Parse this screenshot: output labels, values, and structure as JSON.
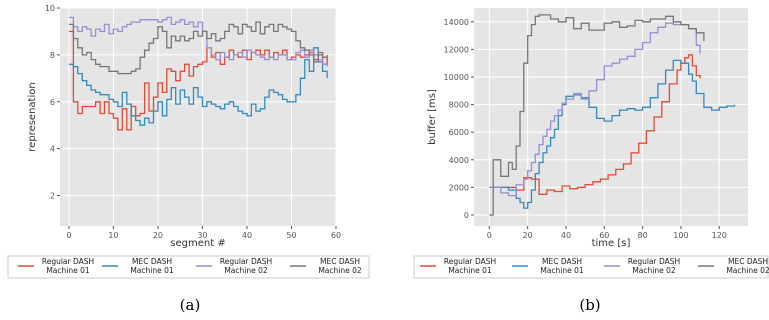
{
  "chart_data": [
    {
      "type": "line",
      "subplot_label": "(a)",
      "xlabel": "segment #",
      "ylabel": "represenation",
      "xlim": [
        -2,
        60
      ],
      "ylim": [
        0.7,
        10
      ],
      "xticks": [
        0,
        10,
        20,
        30,
        40,
        50,
        60
      ],
      "yticks": [
        2,
        4,
        6,
        8,
        10
      ],
      "grid": true,
      "legend_placement": "bottom",
      "series": [
        {
          "name": "Regular DASH\nMachine 01",
          "color": "#E24A33",
          "x": [
            0,
            1,
            2,
            3,
            4,
            5,
            6,
            7,
            8,
            9,
            10,
            11,
            12,
            13,
            14,
            15,
            16,
            17,
            18,
            19,
            20,
            21,
            22,
            23,
            24,
            25,
            26,
            27,
            28,
            29,
            30,
            31,
            32,
            33,
            34,
            35,
            36,
            37,
            38,
            39,
            40,
            41,
            42,
            43,
            44,
            45,
            46,
            47,
            48,
            49,
            50,
            51,
            52,
            53,
            54,
            55,
            56,
            57,
            58
          ],
          "y": [
            9.0,
            6.0,
            5.5,
            5.8,
            5.8,
            5.8,
            6.0,
            5.5,
            6.0,
            5.5,
            5.3,
            4.8,
            5.7,
            4.8,
            5.8,
            5.4,
            5.5,
            6.8,
            5.6,
            6.2,
            6.8,
            6.4,
            7.4,
            7.3,
            6.9,
            7.3,
            7.6,
            7.1,
            7.5,
            7.6,
            7.7,
            8.3,
            7.9,
            8.1,
            7.6,
            7.9,
            8.2,
            8.0,
            7.9,
            8.2,
            7.8,
            8.1,
            8.2,
            8.0,
            8.2,
            7.9,
            8.1,
            8.0,
            8.2,
            7.8,
            7.9,
            8.0,
            7.9,
            8.0,
            8.1,
            7.7,
            8.0,
            7.6,
            8.0
          ]
        },
        {
          "name": "MEC DASH\nMachine 01",
          "color": "#348ABD",
          "x": [
            0,
            1,
            2,
            3,
            4,
            5,
            6,
            7,
            8,
            9,
            10,
            11,
            12,
            13,
            14,
            15,
            16,
            17,
            18,
            19,
            20,
            21,
            22,
            23,
            24,
            25,
            26,
            27,
            28,
            29,
            30,
            31,
            32,
            33,
            34,
            35,
            36,
            37,
            38,
            39,
            40,
            41,
            42,
            43,
            44,
            45,
            46,
            47,
            48,
            49,
            50,
            51,
            52,
            53,
            54,
            55,
            56,
            57,
            58
          ],
          "y": [
            7.6,
            7.5,
            7.2,
            6.9,
            6.7,
            6.5,
            6.4,
            6.3,
            6.3,
            6.1,
            6.0,
            5.8,
            6.4,
            5.9,
            5.4,
            5.2,
            5.0,
            5.3,
            5.1,
            5.6,
            6.0,
            5.4,
            6.1,
            6.6,
            5.9,
            6.5,
            6.2,
            5.9,
            6.6,
            6.2,
            5.8,
            6.0,
            5.9,
            5.8,
            5.7,
            5.9,
            6.0,
            5.8,
            5.6,
            5.5,
            5.4,
            5.9,
            5.6,
            5.7,
            6.2,
            6.5,
            6.4,
            6.3,
            6.1,
            6.0,
            6.0,
            6.3,
            7.0,
            7.8,
            7.3,
            8.3,
            7.7,
            7.3,
            7.0
          ]
        },
        {
          "name": "Regular DASH\nMachine 02",
          "color": "#988ED5",
          "x": [
            0,
            1,
            2,
            3,
            4,
            5,
            6,
            7,
            8,
            9,
            10,
            11,
            12,
            13,
            14,
            15,
            16,
            17,
            18,
            19,
            20,
            21,
            22,
            23,
            24,
            25,
            26,
            27,
            28,
            29,
            30,
            31,
            32,
            33,
            34,
            35,
            36,
            37,
            38,
            39,
            40,
            41,
            42,
            43,
            44,
            45,
            46,
            47,
            48,
            49,
            50,
            51,
            52,
            53,
            54,
            55,
            56,
            57,
            58
          ],
          "y": [
            9.6,
            9.2,
            9.0,
            9.2,
            9.1,
            8.8,
            9.1,
            9.0,
            9.3,
            8.9,
            9.1,
            9.0,
            9.2,
            9.3,
            9.4,
            9.4,
            9.5,
            9.5,
            9.5,
            9.5,
            9.4,
            9.5,
            9.6,
            9.3,
            9.4,
            9.5,
            9.3,
            9.4,
            9.2,
            9.4,
            9.0,
            8.3,
            8.0,
            7.8,
            8.1,
            7.9,
            7.8,
            8.0,
            8.1,
            7.9,
            8.2,
            8.1,
            8.0,
            7.9,
            7.8,
            7.9,
            7.8,
            8.0,
            8.0,
            7.8,
            7.8,
            8.1,
            8.2,
            7.9,
            8.2,
            8.0,
            7.8,
            7.6,
            7.5
          ]
        },
        {
          "name": "MEC DASH\nMachine 02",
          "color": "#777777",
          "x": [
            0,
            1,
            2,
            3,
            4,
            5,
            6,
            7,
            8,
            9,
            10,
            11,
            12,
            13,
            14,
            15,
            16,
            17,
            18,
            19,
            20,
            21,
            22,
            23,
            24,
            25,
            26,
            27,
            28,
            29,
            30,
            31,
            32,
            33,
            34,
            35,
            36,
            37,
            38,
            39,
            40,
            41,
            42,
            43,
            44,
            45,
            46,
            47,
            48,
            49,
            50,
            51,
            52,
            53,
            54,
            55,
            56,
            57,
            58
          ],
          "y": [
            9.3,
            8.7,
            8.3,
            8.0,
            8.1,
            7.8,
            7.6,
            7.5,
            7.5,
            7.3,
            7.3,
            7.2,
            7.2,
            7.2,
            7.3,
            7.4,
            7.9,
            8.2,
            8.5,
            8.7,
            9.2,
            9.0,
            8.3,
            8.8,
            8.6,
            8.8,
            8.6,
            8.7,
            9.0,
            8.8,
            9.0,
            8.7,
            8.9,
            8.6,
            8.7,
            9.0,
            9.3,
            9.2,
            8.9,
            9.3,
            9.2,
            9.0,
            9.4,
            8.9,
            9.2,
            9.3,
            9.0,
            9.3,
            9.2,
            9.1,
            9.0,
            8.6,
            8.3,
            8.2,
            8.0,
            7.8,
            8.1,
            7.9,
            7.8
          ]
        }
      ]
    },
    {
      "type": "line",
      "subplot_label": "(b)",
      "xlabel": "time [s]",
      "ylabel": "buffer [ms]",
      "xlim": [
        -8,
        135
      ],
      "ylim": [
        -800,
        15000
      ],
      "xticks": [
        0,
        20,
        40,
        60,
        80,
        100,
        120
      ],
      "yticks": [
        0,
        2000,
        4000,
        6000,
        8000,
        10000,
        12000,
        14000
      ],
      "grid": true,
      "legend_placement": "bottom",
      "series": [
        {
          "name": "Regular DASH\nMachine 01",
          "color": "#E24A33",
          "x": [
            0,
            2,
            6,
            10,
            14,
            18,
            22,
            26,
            30,
            34,
            38,
            42,
            46,
            50,
            54,
            58,
            62,
            66,
            70,
            74,
            78,
            82,
            86,
            90,
            94,
            98,
            100,
            102,
            104,
            106,
            108,
            110
          ],
          "y": [
            2000,
            2000,
            2000,
            2000,
            1800,
            2700,
            2600,
            1500,
            1800,
            1700,
            2100,
            1900,
            2000,
            2200,
            2400,
            2600,
            2900,
            3300,
            3700,
            4500,
            5200,
            6100,
            7100,
            8200,
            9500,
            10500,
            11000,
            11400,
            11600,
            10800,
            10100,
            9900
          ]
        },
        {
          "name": "MEC DASH\nMachine 01",
          "color": "#348ABD",
          "x": [
            0,
            2,
            6,
            10,
            14,
            16,
            18,
            20,
            22,
            24,
            26,
            28,
            30,
            32,
            34,
            36,
            38,
            40,
            44,
            48,
            52,
            56,
            60,
            64,
            68,
            72,
            76,
            80,
            84,
            88,
            92,
            96,
            100,
            104,
            106,
            108,
            112,
            116,
            120,
            124,
            128
          ],
          "y": [
            2000,
            2000,
            2000,
            1800,
            1200,
            900,
            500,
            900,
            1800,
            3000,
            3800,
            4500,
            5000,
            5600,
            6200,
            7200,
            8000,
            8600,
            8700,
            8500,
            7800,
            7000,
            6800,
            7200,
            7600,
            7700,
            7600,
            7800,
            8500,
            9500,
            10500,
            11200,
            11000,
            10200,
            9700,
            8800,
            7800,
            7600,
            7800,
            7900,
            8000
          ]
        },
        {
          "name": "Regular DASH\nMachine 02",
          "color": "#988ED5",
          "x": [
            0,
            2,
            6,
            10,
            14,
            18,
            20,
            22,
            24,
            26,
            28,
            30,
            32,
            34,
            36,
            38,
            40,
            44,
            48,
            52,
            56,
            60,
            64,
            68,
            72,
            76,
            80,
            84,
            88,
            92,
            96,
            100,
            104,
            108,
            110
          ],
          "y": [
            2000,
            2000,
            1600,
            1400,
            2200,
            2600,
            3200,
            3800,
            4400,
            5100,
            5700,
            6200,
            6800,
            7200,
            7600,
            8100,
            8400,
            8800,
            8400,
            9000,
            9800,
            10800,
            11000,
            11300,
            11500,
            12000,
            12500,
            13200,
            13600,
            13900,
            13800,
            13800,
            13500,
            12300,
            11700
          ]
        },
        {
          "name": "MEC DASH\nMachine 02",
          "color": "#777777",
          "x": [
            0,
            2,
            6,
            10,
            12,
            14,
            16,
            18,
            20,
            22,
            24,
            26,
            28,
            32,
            36,
            40,
            44,
            48,
            52,
            56,
            60,
            64,
            68,
            72,
            76,
            80,
            84,
            88,
            92,
            96,
            100,
            104,
            108,
            112
          ],
          "y": [
            0,
            4000,
            2800,
            3800,
            3300,
            5000,
            7500,
            11000,
            13000,
            13800,
            14400,
            14500,
            14500,
            14200,
            14000,
            14300,
            13500,
            13900,
            13400,
            13400,
            13900,
            14000,
            13600,
            13700,
            14100,
            14000,
            14200,
            14200,
            14400,
            14000,
            13800,
            13500,
            13200,
            12600
          ]
        }
      ]
    }
  ],
  "captions": {
    "a": "(a)",
    "b": "(b)"
  }
}
